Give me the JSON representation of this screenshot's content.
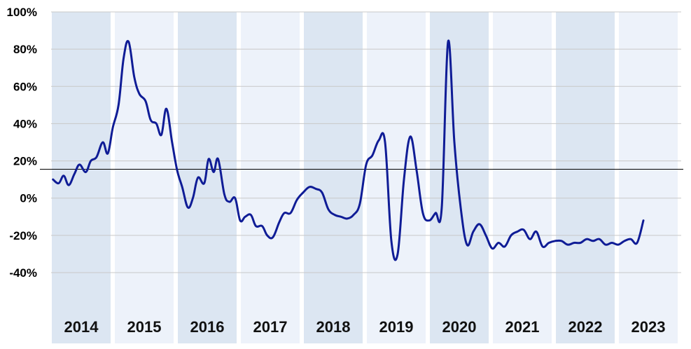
{
  "colors": {
    "band_dark": "#dce6f2",
    "band_light": "#edf2fa",
    "line": "#0f1c96",
    "grid": "#c8c8c8",
    "refline": "#000000"
  },
  "chart_data": {
    "type": "line",
    "title": "",
    "xlabel": "",
    "ylabel": "",
    "ylim": [
      -40,
      100
    ],
    "y_ticks": [
      "100%",
      "80%",
      "60%",
      "40%",
      "20%",
      "0%",
      "-20%",
      "-40%"
    ],
    "y_tick_values": [
      100,
      80,
      60,
      40,
      20,
      0,
      -20,
      -40
    ],
    "reference_line": 15.5,
    "grid": true,
    "x_range": [
      2014.0,
      2024.0
    ],
    "years": [
      "2014",
      "2015",
      "2016",
      "2017",
      "2018",
      "2019",
      "2020",
      "2021",
      "2022",
      "2023"
    ],
    "series": [
      {
        "x": [
          2014.03,
          2014.12,
          2014.2,
          2014.28,
          2014.37,
          2014.45,
          2014.55,
          2014.63,
          2014.72,
          2014.82,
          2014.9,
          2014.98,
          2015.07,
          2015.15,
          2015.23,
          2015.32,
          2015.4,
          2015.5,
          2015.58,
          2015.67,
          2015.75,
          2015.83,
          2015.92,
          2016.0,
          2016.08,
          2016.17,
          2016.25,
          2016.33,
          2016.43,
          2016.5,
          2016.58,
          2016.65,
          2016.75,
          2016.83,
          2016.92,
          2017.0,
          2017.08,
          2017.17,
          2017.25,
          2017.35,
          2017.43,
          2017.52,
          2017.62,
          2017.7,
          2017.8,
          2017.9,
          2018.0,
          2018.1,
          2018.2,
          2018.3,
          2018.4,
          2018.5,
          2018.6,
          2018.7,
          2018.8,
          2018.9,
          2019.0,
          2019.1,
          2019.2,
          2019.3,
          2019.4,
          2019.5,
          2019.6,
          2019.7,
          2019.8,
          2019.9,
          2020.0,
          2020.1,
          2020.2,
          2020.3,
          2020.4,
          2020.5,
          2020.6,
          2020.7,
          2020.8,
          2020.9,
          2021.0,
          2021.1,
          2021.2,
          2021.3,
          2021.4,
          2021.5,
          2021.6,
          2021.7,
          2021.8,
          2021.9,
          2022.0,
          2022.1,
          2022.2,
          2022.3,
          2022.4,
          2022.5,
          2022.6,
          2022.7,
          2022.8,
          2022.9,
          2023.0,
          2023.1,
          2023.2,
          2023.3,
          2023.4
        ],
        "values": [
          10,
          8,
          12,
          7,
          13,
          18,
          14,
          20,
          22,
          30,
          24,
          38,
          50,
          75,
          84,
          65,
          56,
          52,
          42,
          40,
          34,
          48,
          30,
          15,
          6,
          -5,
          0,
          11,
          8,
          21,
          14,
          21,
          2,
          -2,
          0,
          -12,
          -10,
          -9,
          -15,
          -15,
          -20,
          -21,
          -13,
          -8,
          -8,
          -1,
          3,
          6,
          5,
          3,
          -6,
          -9,
          -10,
          -11,
          -9,
          -3,
          18,
          23,
          31,
          30,
          -23,
          -30,
          10,
          33,
          15,
          -8,
          -12,
          -8,
          -5,
          84,
          30,
          -5,
          -25,
          -18,
          -14,
          -20,
          -27,
          -24,
          -26,
          -20,
          -18,
          -17,
          -22,
          -18,
          -26,
          -24,
          -23,
          -23,
          -25,
          -24,
          -24,
          -22,
          -23,
          -22,
          -25,
          -24,
          -25,
          -23,
          -22,
          -24,
          -12
        ]
      }
    ]
  }
}
